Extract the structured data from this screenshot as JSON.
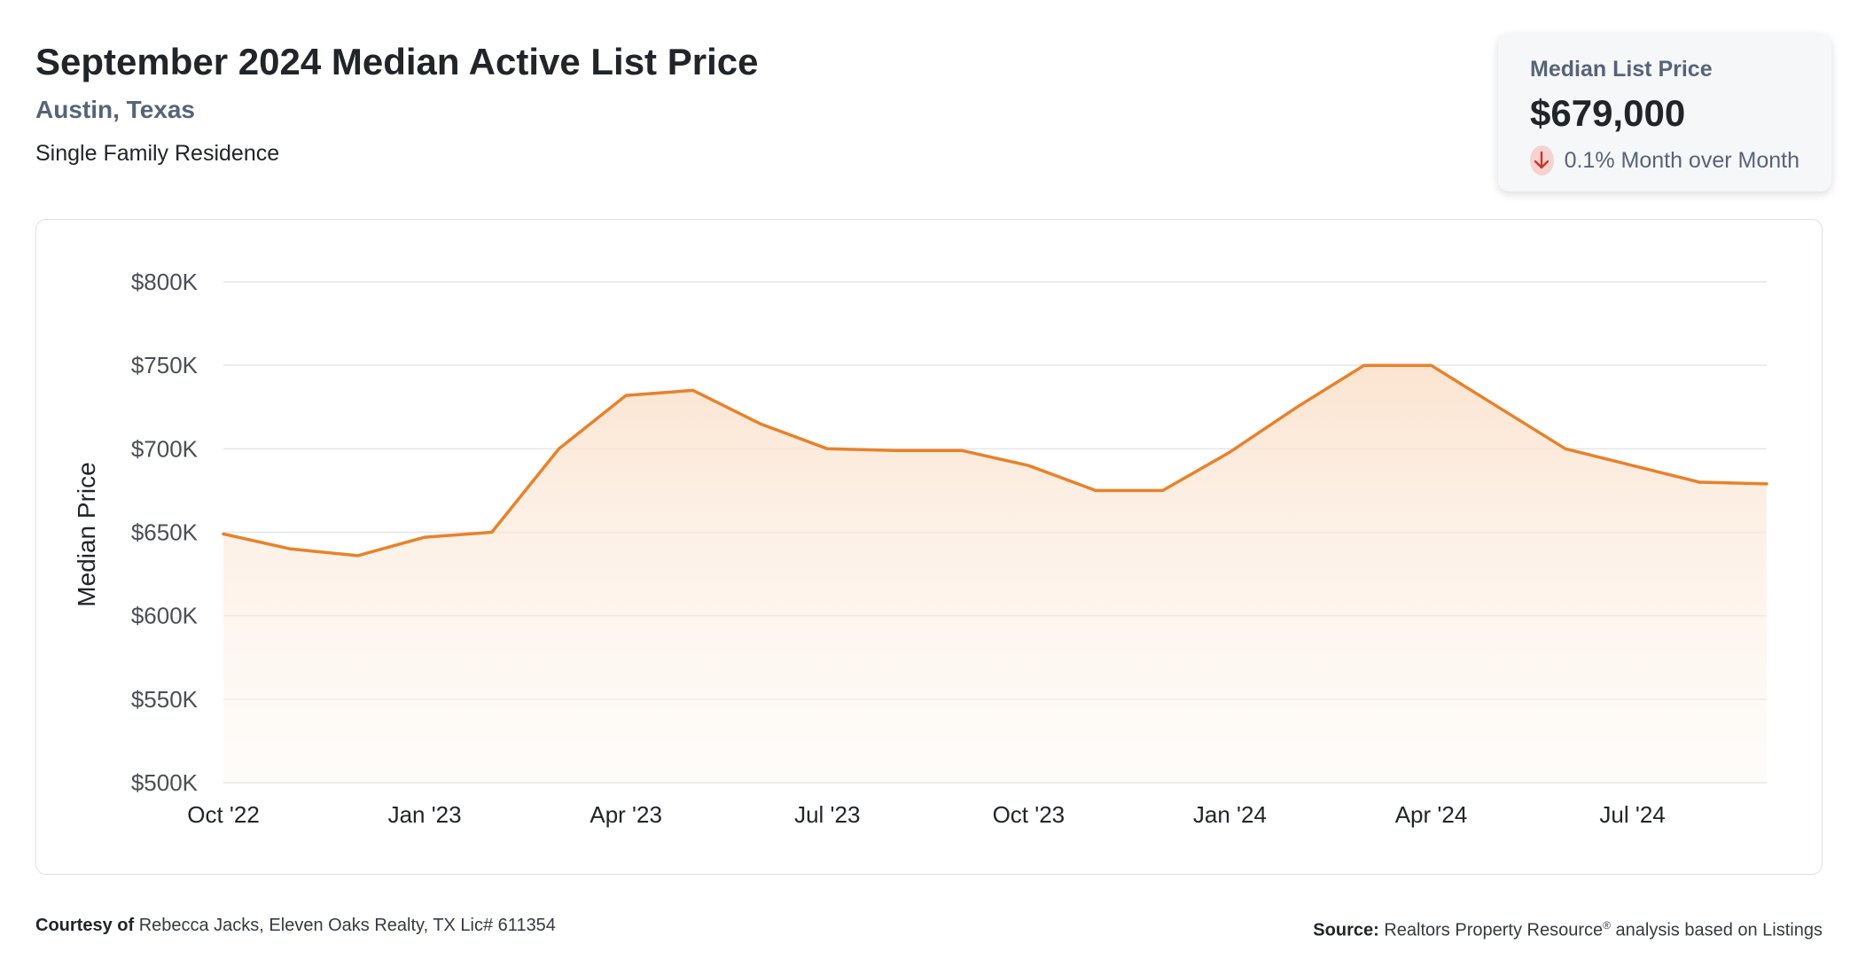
{
  "header": {
    "title": "September 2024 Median Active List Price",
    "location": "Austin, Texas",
    "property_type": "Single Family Residence"
  },
  "stat_card": {
    "label": "Median List Price",
    "value": "$679,000",
    "change": "0.1% Month over Month",
    "direction": "down",
    "direction_icon": "arrow-down-icon"
  },
  "colors": {
    "line": "#e8822b",
    "fill_top": "#fbe3cf",
    "grid": "#e4e6ea",
    "down_badge": "#f8d2d0",
    "down_arrow": "#c0392b"
  },
  "chart_data": {
    "type": "area",
    "ylabel": "Median Price",
    "ylim": [
      500000,
      800000
    ],
    "y_ticks": [
      {
        "value": 800000,
        "label": "$800K"
      },
      {
        "value": 750000,
        "label": "$750K"
      },
      {
        "value": 700000,
        "label": "$700K"
      },
      {
        "value": 650000,
        "label": "$650K"
      },
      {
        "value": 600000,
        "label": "$600K"
      },
      {
        "value": 550000,
        "label": "$550K"
      },
      {
        "value": 500000,
        "label": "$500K"
      }
    ],
    "x_ticks": [
      "Oct '22",
      "Jan '23",
      "Apr '23",
      "Jul '23",
      "Oct '23",
      "Jan '24",
      "Apr '24",
      "Jul '24"
    ],
    "x": [
      "Oct '22",
      "Nov '22",
      "Dec '22",
      "Jan '23",
      "Feb '23",
      "Mar '23",
      "Apr '23",
      "May '23",
      "Jun '23",
      "Jul '23",
      "Aug '23",
      "Sep '23",
      "Oct '23",
      "Nov '23",
      "Dec '23",
      "Jan '24",
      "Feb '24",
      "Mar '24",
      "Apr '24",
      "May '24",
      "Jun '24",
      "Jul '24",
      "Aug '24",
      "Sep '24"
    ],
    "values": [
      649000,
      640000,
      636000,
      647000,
      650000,
      700000,
      732000,
      735000,
      715000,
      700000,
      699000,
      699000,
      690000,
      675000,
      675000,
      698000,
      725000,
      750000,
      750000,
      725000,
      700000,
      690000,
      680000,
      679000
    ],
    "grid": true,
    "legend": "none"
  },
  "footer": {
    "courtesy_label": "Courtesy of",
    "courtesy_text": "Rebecca Jacks, Eleven Oaks Realty, TX Lic# 611354",
    "source_label": "Source:",
    "source_name": "Realtors Property Resource",
    "source_mark": "®",
    "source_text": "analysis based on Listings"
  }
}
